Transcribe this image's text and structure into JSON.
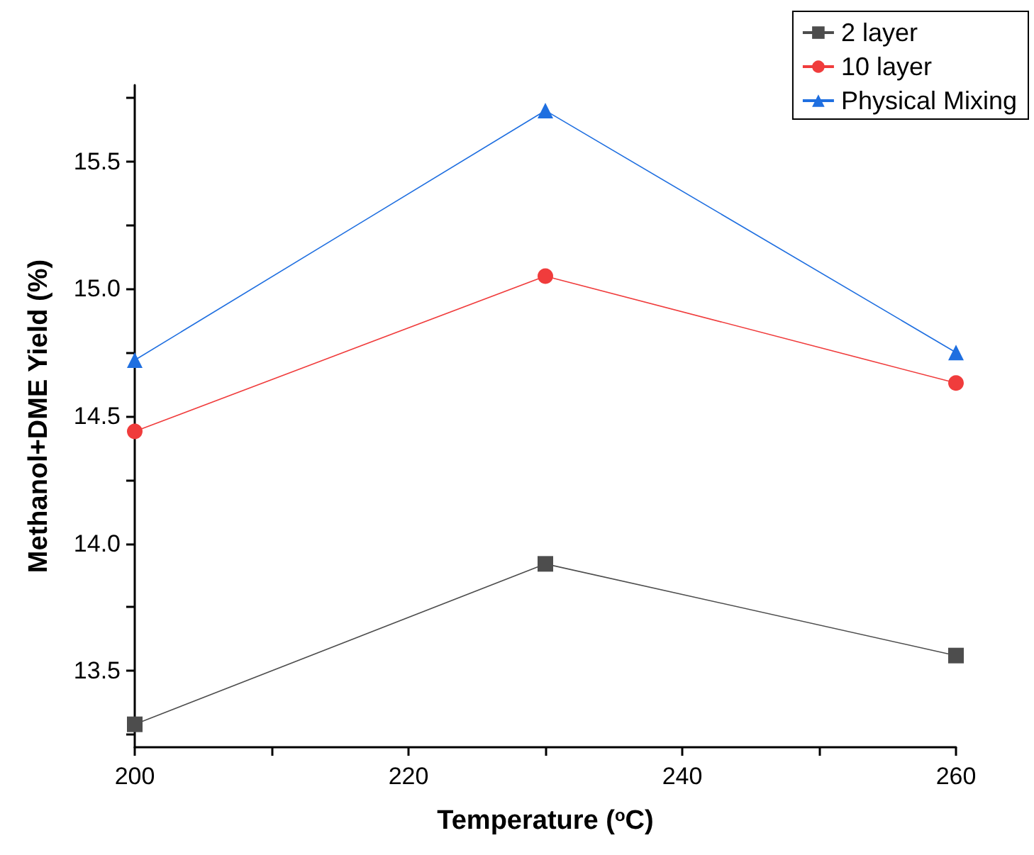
{
  "chart_data": {
    "type": "line",
    "xlabel": "Temperature ($^{o}$C)",
    "ylabel": "Methanol+DME Yield (%)",
    "x": [
      200,
      230,
      260
    ],
    "series": [
      {
        "name": "2 layer",
        "color": "#4d4d4d",
        "marker": "square",
        "values": [
          13.29,
          13.92,
          13.56
        ]
      },
      {
        "name": "10 layer",
        "color": "#f03c3c",
        "marker": "circle",
        "values": [
          14.44,
          15.05,
          14.63
        ]
      },
      {
        "name": "Physical Mixing",
        "color": "#1f6fe0",
        "marker": "triangle",
        "values": [
          14.72,
          15.7,
          14.75
        ]
      }
    ],
    "xlim": [
      200,
      260
    ],
    "xticks": [
      200,
      {
        "value": 210,
        "label": null
      },
      220,
      {
        "value": 230,
        "label": null
      },
      240,
      {
        "value": 250,
        "label": null
      },
      260
    ],
    "ylim": [
      13.2,
      15.8
    ],
    "yticks": [
      {
        "value": 13.25,
        "label": null
      },
      13.5,
      {
        "value": 13.75,
        "label": null
      },
      "14.0",
      {
        "value": 14.25,
        "label": null
      },
      14.5,
      {
        "value": 14.75,
        "label": null
      },
      "15.0",
      {
        "value": 15.25,
        "label": null
      },
      15.5,
      {
        "value": 15.75,
        "label": null
      }
    ],
    "grid": false,
    "legend": "top right",
    "line_style": "solid"
  }
}
